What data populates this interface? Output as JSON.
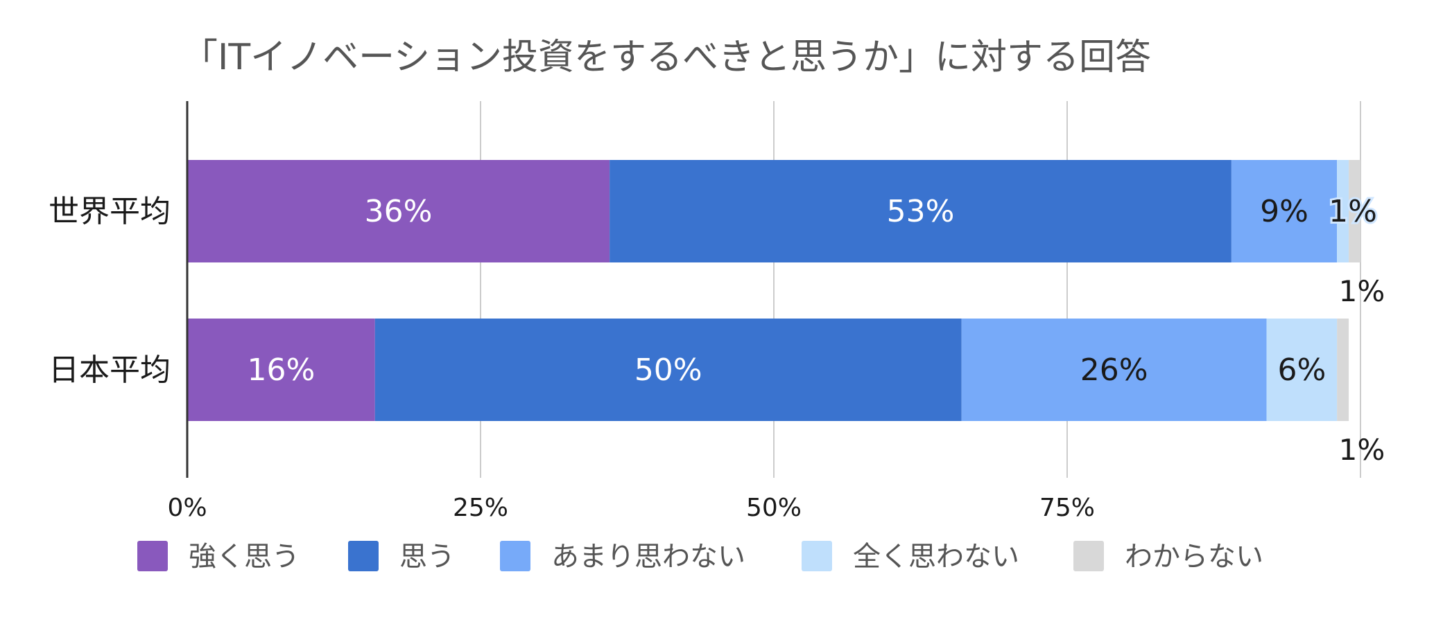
{
  "chart_data": {
    "type": "bar",
    "orientation": "horizontal",
    "stacked": true,
    "title": "「ITイノベーション投資をするべきと思うか」に対する回答",
    "categories": [
      "世界平均",
      "日本平均"
    ],
    "series": [
      {
        "name": "強く思う",
        "color": "#8959bd",
        "values": [
          36,
          16
        ],
        "labels": [
          "36%",
          "16%"
        ],
        "label_color": "#ffffff"
      },
      {
        "name": "思う",
        "color": "#3a73cf",
        "values": [
          53,
          50
        ],
        "labels": [
          "53%",
          "50%"
        ],
        "label_color": "#ffffff"
      },
      {
        "name": "あまり思わない",
        "color": "#77aaf9",
        "values": [
          9,
          26
        ],
        "labels": [
          "9%",
          "26%"
        ],
        "label_color": "#1a1a1a"
      },
      {
        "name": "全く思わない",
        "color": "#bfdffc",
        "values": [
          1,
          6
        ],
        "labels": [
          "1%",
          "6%"
        ],
        "label_color": "#1a1a1a"
      },
      {
        "name": "わからない",
        "color": "#d8d8d8",
        "values": [
          1,
          1
        ],
        "labels": [
          "1%",
          "1%"
        ],
        "label_color": "#1a1a1a"
      }
    ],
    "xlim": [
      0,
      100
    ],
    "xticks": [
      0,
      25,
      50,
      75,
      100
    ],
    "xtick_labels": [
      "0%",
      "25%",
      "50%",
      "75%",
      ""
    ],
    "grid": true,
    "legend_position": "bottom"
  }
}
